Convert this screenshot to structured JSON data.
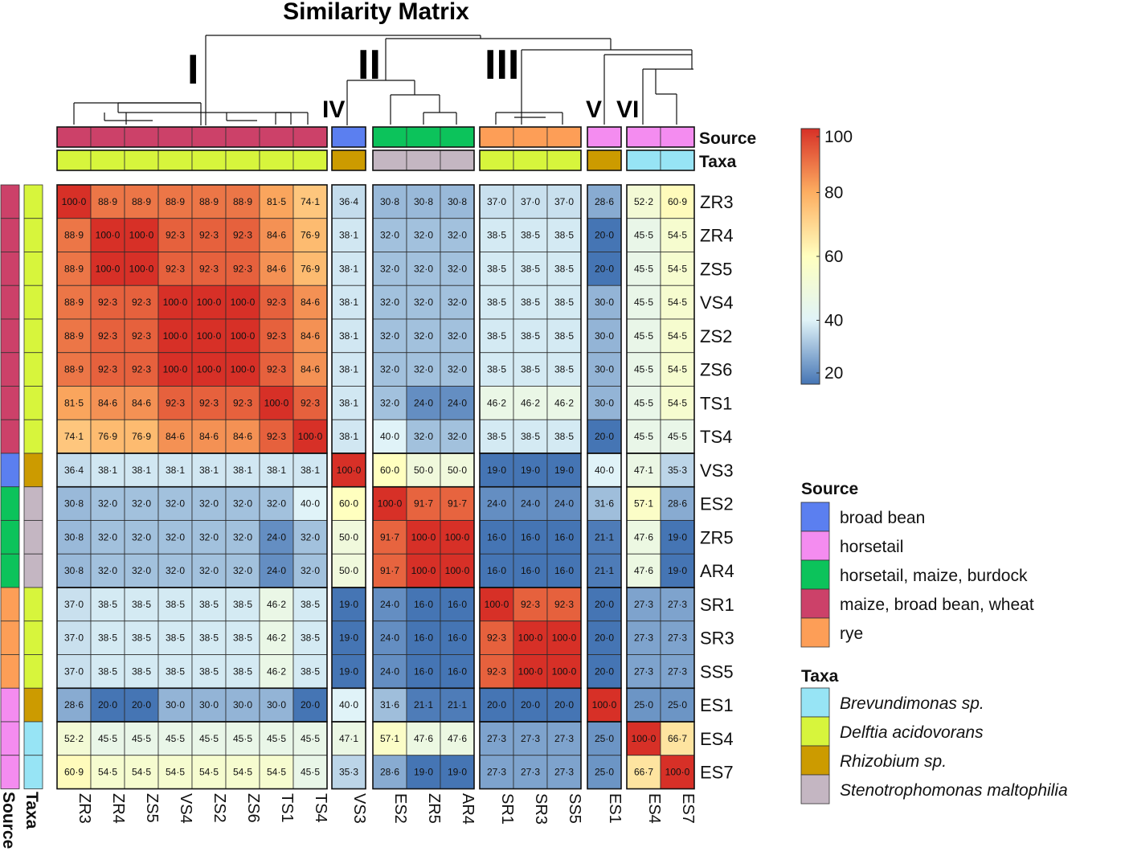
{
  "chart_data": {
    "type": "heatmap",
    "title": "Similarity Matrix",
    "labels": [
      "ZR3",
      "ZR4",
      "ZS5",
      "VS4",
      "ZS2",
      "ZS6",
      "TS1",
      "TS4",
      "VS3",
      "ES2",
      "ZR5",
      "AR4",
      "SR1",
      "SR3",
      "SS5",
      "ES1",
      "ES4",
      "ES7"
    ],
    "values": [
      [
        100.0,
        88.9,
        88.9,
        88.9,
        88.9,
        88.9,
        81.5,
        74.1,
        36.4,
        30.8,
        30.8,
        30.8,
        37.0,
        37.0,
        37.0,
        28.6,
        52.2,
        60.9
      ],
      [
        88.9,
        100.0,
        100.0,
        92.3,
        92.3,
        92.3,
        84.6,
        76.9,
        38.1,
        32.0,
        32.0,
        32.0,
        38.5,
        38.5,
        38.5,
        20.0,
        45.5,
        54.5
      ],
      [
        88.9,
        100.0,
        100.0,
        92.3,
        92.3,
        92.3,
        84.6,
        76.9,
        38.1,
        32.0,
        32.0,
        32.0,
        38.5,
        38.5,
        38.5,
        20.0,
        45.5,
        54.5
      ],
      [
        88.9,
        92.3,
        92.3,
        100.0,
        100.0,
        100.0,
        92.3,
        84.6,
        38.1,
        32.0,
        32.0,
        32.0,
        38.5,
        38.5,
        38.5,
        30.0,
        45.5,
        54.5
      ],
      [
        88.9,
        92.3,
        92.3,
        100.0,
        100.0,
        100.0,
        92.3,
        84.6,
        38.1,
        32.0,
        32.0,
        32.0,
        38.5,
        38.5,
        38.5,
        30.0,
        45.5,
        54.5
      ],
      [
        88.9,
        92.3,
        92.3,
        100.0,
        100.0,
        100.0,
        92.3,
        84.6,
        38.1,
        32.0,
        32.0,
        32.0,
        38.5,
        38.5,
        38.5,
        30.0,
        45.5,
        54.5
      ],
      [
        81.5,
        84.6,
        84.6,
        92.3,
        92.3,
        92.3,
        100.0,
        92.3,
        38.1,
        32.0,
        24.0,
        24.0,
        46.2,
        46.2,
        46.2,
        30.0,
        45.5,
        54.5
      ],
      [
        74.1,
        76.9,
        76.9,
        84.6,
        84.6,
        84.6,
        92.3,
        100.0,
        38.1,
        40.0,
        32.0,
        32.0,
        38.5,
        38.5,
        38.5,
        20.0,
        45.5,
        45.5
      ],
      [
        36.4,
        38.1,
        38.1,
        38.1,
        38.1,
        38.1,
        38.1,
        38.1,
        100.0,
        60.0,
        50.0,
        50.0,
        19.0,
        19.0,
        19.0,
        40.0,
        47.1,
        35.3
      ],
      [
        30.8,
        32.0,
        32.0,
        32.0,
        32.0,
        32.0,
        32.0,
        40.0,
        60.0,
        100.0,
        91.7,
        91.7,
        24.0,
        24.0,
        24.0,
        31.6,
        57.1,
        28.6
      ],
      [
        30.8,
        32.0,
        32.0,
        32.0,
        32.0,
        32.0,
        24.0,
        32.0,
        50.0,
        91.7,
        100.0,
        100.0,
        16.0,
        16.0,
        16.0,
        21.1,
        47.6,
        19.0
      ],
      [
        30.8,
        32.0,
        32.0,
        32.0,
        32.0,
        32.0,
        24.0,
        32.0,
        50.0,
        91.7,
        100.0,
        100.0,
        16.0,
        16.0,
        16.0,
        21.1,
        47.6,
        19.0
      ],
      [
        37.0,
        38.5,
        38.5,
        38.5,
        38.5,
        38.5,
        46.2,
        38.5,
        19.0,
        24.0,
        16.0,
        16.0,
        100.0,
        92.3,
        92.3,
        20.0,
        27.3,
        27.3
      ],
      [
        37.0,
        38.5,
        38.5,
        38.5,
        38.5,
        38.5,
        46.2,
        38.5,
        19.0,
        24.0,
        16.0,
        16.0,
        92.3,
        100.0,
        100.0,
        20.0,
        27.3,
        27.3
      ],
      [
        37.0,
        38.5,
        38.5,
        38.5,
        38.5,
        38.5,
        46.2,
        38.5,
        19.0,
        24.0,
        16.0,
        16.0,
        92.3,
        100.0,
        100.0,
        20.0,
        27.3,
        27.3
      ],
      [
        28.6,
        20.0,
        20.0,
        30.0,
        30.0,
        30.0,
        30.0,
        20.0,
        40.0,
        31.6,
        21.1,
        21.1,
        20.0,
        20.0,
        20.0,
        100.0,
        25.0,
        25.0
      ],
      [
        52.2,
        45.5,
        45.5,
        45.5,
        45.5,
        45.5,
        45.5,
        45.5,
        47.1,
        57.1,
        47.6,
        47.6,
        27.3,
        27.3,
        27.3,
        25.0,
        100.0,
        66.7
      ],
      [
        60.9,
        54.5,
        54.5,
        54.5,
        54.5,
        54.5,
        54.5,
        45.5,
        35.3,
        28.6,
        19.0,
        19.0,
        27.3,
        27.3,
        27.3,
        25.0,
        66.7,
        100.0
      ]
    ],
    "groups": [
      [
        0,
        7
      ],
      [
        8,
        8
      ],
      [
        9,
        11
      ],
      [
        12,
        14
      ],
      [
        15,
        15
      ],
      [
        16,
        17
      ]
    ],
    "cluster_labels": [
      "I",
      "II",
      "III",
      "IV",
      "V",
      "VI"
    ],
    "source": [
      "maize, broad bean, wheat",
      "maize, broad bean, wheat",
      "maize, broad bean, wheat",
      "maize, broad bean, wheat",
      "maize, broad bean, wheat",
      "maize, broad bean, wheat",
      "maize, broad bean, wheat",
      "maize, broad bean, wheat",
      "broad bean",
      "horsetail, maize, burdock",
      "horsetail, maize, burdock",
      "horsetail, maize, burdock",
      "rye",
      "rye",
      "rye",
      "horsetail",
      "horsetail",
      "horsetail"
    ],
    "taxa": [
      "Delftia acidovorans",
      "Delftia acidovorans",
      "Delftia acidovorans",
      "Delftia acidovorans",
      "Delftia acidovorans",
      "Delftia acidovorans",
      "Delftia acidovorans",
      "Delftia acidovorans",
      "Rhizobium sp.",
      "Stenotrophomonas maltophilia",
      "Stenotrophomonas maltophilia",
      "Stenotrophomonas maltophilia",
      "Delftia acidovorans",
      "Delftia acidovorans",
      "Delftia acidovorans",
      "Rhizobium sp.",
      "Brevundimonas sp.",
      "Brevundimonas sp."
    ],
    "annotation_labels": {
      "source": "Source",
      "taxa": "Taxa"
    },
    "colorbar": {
      "ticks": [
        100,
        80,
        60,
        40,
        20
      ],
      "range": [
        20,
        100
      ],
      "colors": [
        "#4575b4",
        "#e0f3f8",
        "#ffffbf",
        "#fdae61",
        "#d73027"
      ]
    },
    "legend": {
      "source_title": "Source",
      "source_items": [
        {
          "label": "broad bean",
          "color": "#5b7ff0"
        },
        {
          "label": "horsetail",
          "color": "#f48cf0"
        },
        {
          "label": "horsetail, maize, burdock",
          "color": "#0cc35b"
        },
        {
          "label": "maize, broad bean, wheat",
          "color": "#cc4169"
        },
        {
          "label": "rye",
          "color": "#fd9e57"
        }
      ],
      "taxa_title": "Taxa",
      "taxa_items": [
        {
          "label": "Brevundimonas sp.",
          "color": "#97e4f5"
        },
        {
          "label": "Delftia acidovorans",
          "color": "#d7f53c"
        },
        {
          "label": "Rhizobium sp.",
          "color": "#cc9b00"
        },
        {
          "label": "Stenotrophomonas maltophilia",
          "color": "#c4b6c2"
        }
      ]
    }
  }
}
